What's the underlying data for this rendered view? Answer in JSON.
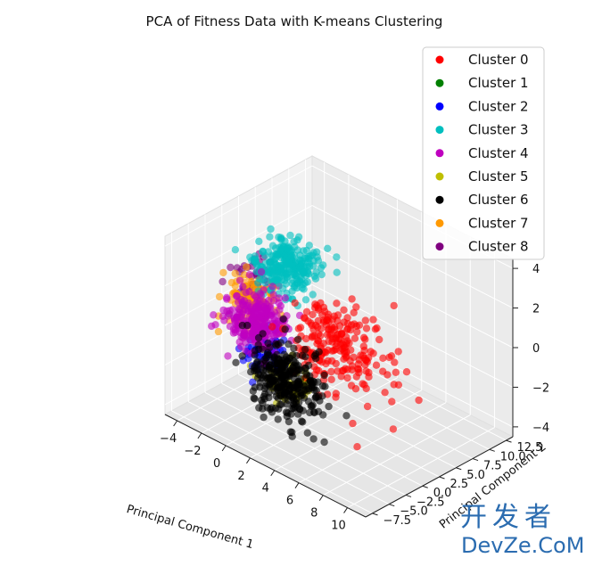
{
  "chart_data": {
    "type": "scatter",
    "title": "PCA of Fitness Data with K-means Clustering",
    "xlabel": "Principal Component 1",
    "ylabel": "Principal Component 2",
    "zlabel": "",
    "x_ticks": [
      "−4",
      "−2",
      "0",
      "2",
      "4",
      "6",
      "8",
      "10"
    ],
    "y_ticks": [
      "−7.5",
      "−5.0",
      "−2.5",
      "0.0",
      "2.5",
      "5.0",
      "7.5",
      "10.0",
      "12.5"
    ],
    "z_ticks": [
      "−4",
      "−2",
      "0",
      "2",
      "4"
    ],
    "xlim": [
      -5,
      11.5
    ],
    "ylim": [
      -8.5,
      13.5
    ],
    "zlim": [
      -4.5,
      4.5
    ],
    "legend_position": "top-right",
    "series": [
      {
        "name": "Cluster 0",
        "color": "#ff0000",
        "center": [
          4.5,
          0.0,
          0.2
        ],
        "spread": [
          1.8,
          1.8,
          1.0
        ],
        "points": [
          [
            9.8,
            -1.5,
            -0.5
          ],
          [
            10.3,
            -2.2,
            -1.6
          ],
          [
            8.6,
            -4.5,
            -2.6
          ],
          [
            7.5,
            3.0,
            2.8
          ]
        ]
      },
      {
        "name": "Cluster 1",
        "color": "#008000",
        "center": [
          2.0,
          2.0,
          0.0
        ],
        "spread": [
          0.5,
          0.5,
          0.5
        ],
        "points": []
      },
      {
        "name": "Cluster 2",
        "color": "#0000ff",
        "center": [
          -1.0,
          -1.0,
          -1.5
        ],
        "spread": [
          0.8,
          0.8,
          0.6
        ],
        "points": []
      },
      {
        "name": "Cluster 3",
        "color": "#00bfbf",
        "center": [
          -1.0,
          2.5,
          2.2
        ],
        "spread": [
          1.0,
          1.5,
          0.6
        ],
        "points": []
      },
      {
        "name": "Cluster 4",
        "color": "#bf00bf",
        "center": [
          -1.8,
          -0.5,
          -0.3
        ],
        "spread": [
          1.0,
          1.2,
          0.7
        ],
        "points": [
          [
            -4.2,
            -3.0,
            -0.8
          ]
        ]
      },
      {
        "name": "Cluster 5",
        "color": "#bfbf00",
        "center": [
          1.5,
          -2.0,
          -2.2
        ],
        "spread": [
          0.9,
          0.9,
          0.5
        ],
        "points": []
      },
      {
        "name": "Cluster 6",
        "color": "#000000",
        "center": [
          1.5,
          -2.5,
          -1.8
        ],
        "spread": [
          1.2,
          1.2,
          0.9
        ],
        "points": [
          [
            7.0,
            -6.5,
            -2.5
          ]
        ]
      },
      {
        "name": "Cluster 7",
        "color": "#ff9900",
        "center": [
          -2.5,
          0.0,
          0.5
        ],
        "spread": [
          0.8,
          1.2,
          0.7
        ],
        "points": []
      },
      {
        "name": "Cluster 8",
        "color": "#800080",
        "center": [
          -3.0,
          1.0,
          1.0
        ],
        "spread": [
          0.6,
          1.0,
          0.6
        ],
        "points": []
      }
    ]
  },
  "watermark": {
    "chinese": "开发者",
    "domain": "DevZe.CoM"
  }
}
